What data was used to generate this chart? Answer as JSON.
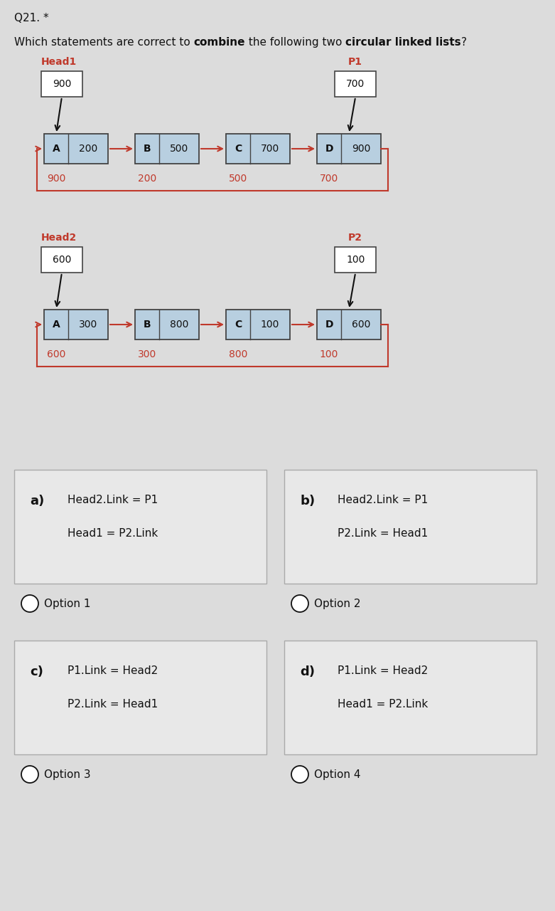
{
  "title": "Q21. *",
  "question_parts": [
    {
      "text": "Which statements are correct to ",
      "bold": false
    },
    {
      "text": "combine",
      "bold": true
    },
    {
      "text": " the following two ",
      "bold": false
    },
    {
      "text": "circular linked lists",
      "bold": true
    },
    {
      "text": "?",
      "bold": false
    }
  ],
  "bg_color": "#dcdcdc",
  "node_fill": "#b8cfe0",
  "node_edge": "#444444",
  "red_color": "#c0392b",
  "black_color": "#111111",
  "list1": {
    "head_label": "Head1",
    "p_label": "P1",
    "head_val": "900",
    "p_val": "700",
    "nodes": [
      {
        "letter": "A",
        "data": "200",
        "addr": "900"
      },
      {
        "letter": "B",
        "data": "500",
        "addr": "200"
      },
      {
        "letter": "C",
        "data": "700",
        "addr": "500"
      },
      {
        "letter": "D",
        "data": "900",
        "addr": "700"
      }
    ]
  },
  "list2": {
    "head_label": "Head2",
    "p_label": "P2",
    "head_val": "600",
    "p_val": "100",
    "nodes": [
      {
        "letter": "A",
        "data": "300",
        "addr": "600"
      },
      {
        "letter": "B",
        "data": "800",
        "addr": "300"
      },
      {
        "letter": "C",
        "data": "100",
        "addr": "800"
      },
      {
        "letter": "D",
        "data": "600",
        "addr": "100"
      }
    ]
  },
  "options": [
    {
      "label": "a)",
      "lines": [
        "Head2.Link = P1",
        "Head1 = P2.Link"
      ],
      "option_text": "Option 1"
    },
    {
      "label": "b)",
      "lines": [
        "Head2.Link = P1",
        "P2.Link = Head1"
      ],
      "option_text": "Option 2"
    },
    {
      "label": "c)",
      "lines": [
        "P1.Link = Head2",
        "P2.Link = Head1"
      ],
      "option_text": "Option 3"
    },
    {
      "label": "d)",
      "lines": [
        "P1.Link = Head2",
        "Head1 = P2.Link"
      ],
      "option_text": "Option 4"
    }
  ]
}
